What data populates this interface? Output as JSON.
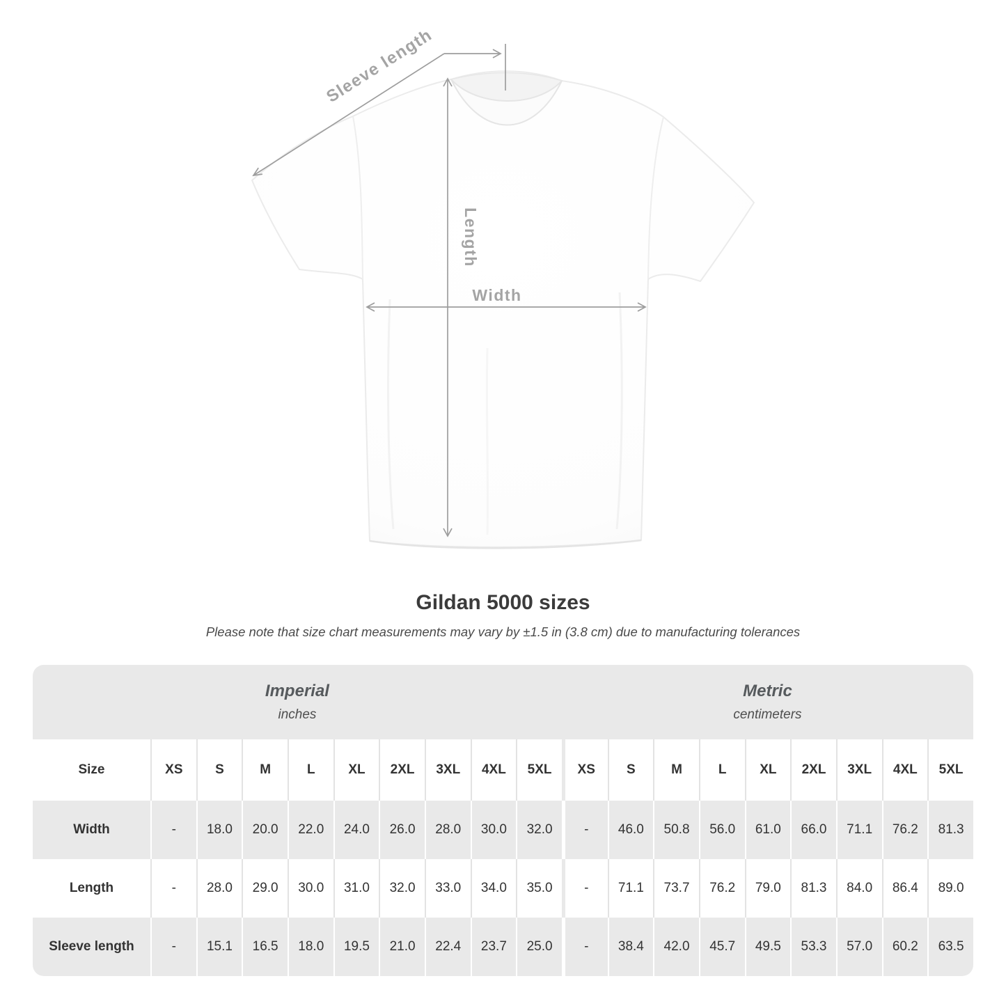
{
  "diagram": {
    "labels": {
      "sleeve_length": "Sleeve length",
      "length": "Length",
      "width": "Width"
    },
    "annotation_color": "#9d9d9d"
  },
  "title": "Gildan 5000 sizes",
  "note": "Please note that size chart measurements may vary by ±1.5 in (3.8 cm) due to manufacturing tolerances",
  "table": {
    "sections": [
      {
        "label": "Imperial",
        "sublabel": "inches"
      },
      {
        "label": "Metric",
        "sublabel": "centimeters"
      }
    ],
    "size_header": "Size",
    "sizes": [
      "XS",
      "S",
      "M",
      "L",
      "XL",
      "2XL",
      "3XL",
      "4XL",
      "5XL"
    ],
    "rows": [
      {
        "label": "Width",
        "imperial": [
          "-",
          "18.0",
          "20.0",
          "22.0",
          "24.0",
          "26.0",
          "28.0",
          "30.0",
          "32.0"
        ],
        "metric": [
          "-",
          "46.0",
          "50.8",
          "56.0",
          "61.0",
          "66.0",
          "71.1",
          "76.2",
          "81.3"
        ]
      },
      {
        "label": "Length",
        "imperial": [
          "-",
          "28.0",
          "29.0",
          "30.0",
          "31.0",
          "32.0",
          "33.0",
          "34.0",
          "35.0"
        ],
        "metric": [
          "-",
          "71.1",
          "73.7",
          "76.2",
          "79.0",
          "81.3",
          "84.0",
          "86.4",
          "89.0"
        ]
      },
      {
        "label": "Sleeve length",
        "imperial": [
          "-",
          "15.1",
          "16.5",
          "18.0",
          "19.5",
          "21.0",
          "22.4",
          "23.7",
          "25.0"
        ],
        "metric": [
          "-",
          "38.4",
          "42.0",
          "45.7",
          "49.5",
          "53.3",
          "57.0",
          "60.2",
          "63.5"
        ]
      }
    ]
  }
}
